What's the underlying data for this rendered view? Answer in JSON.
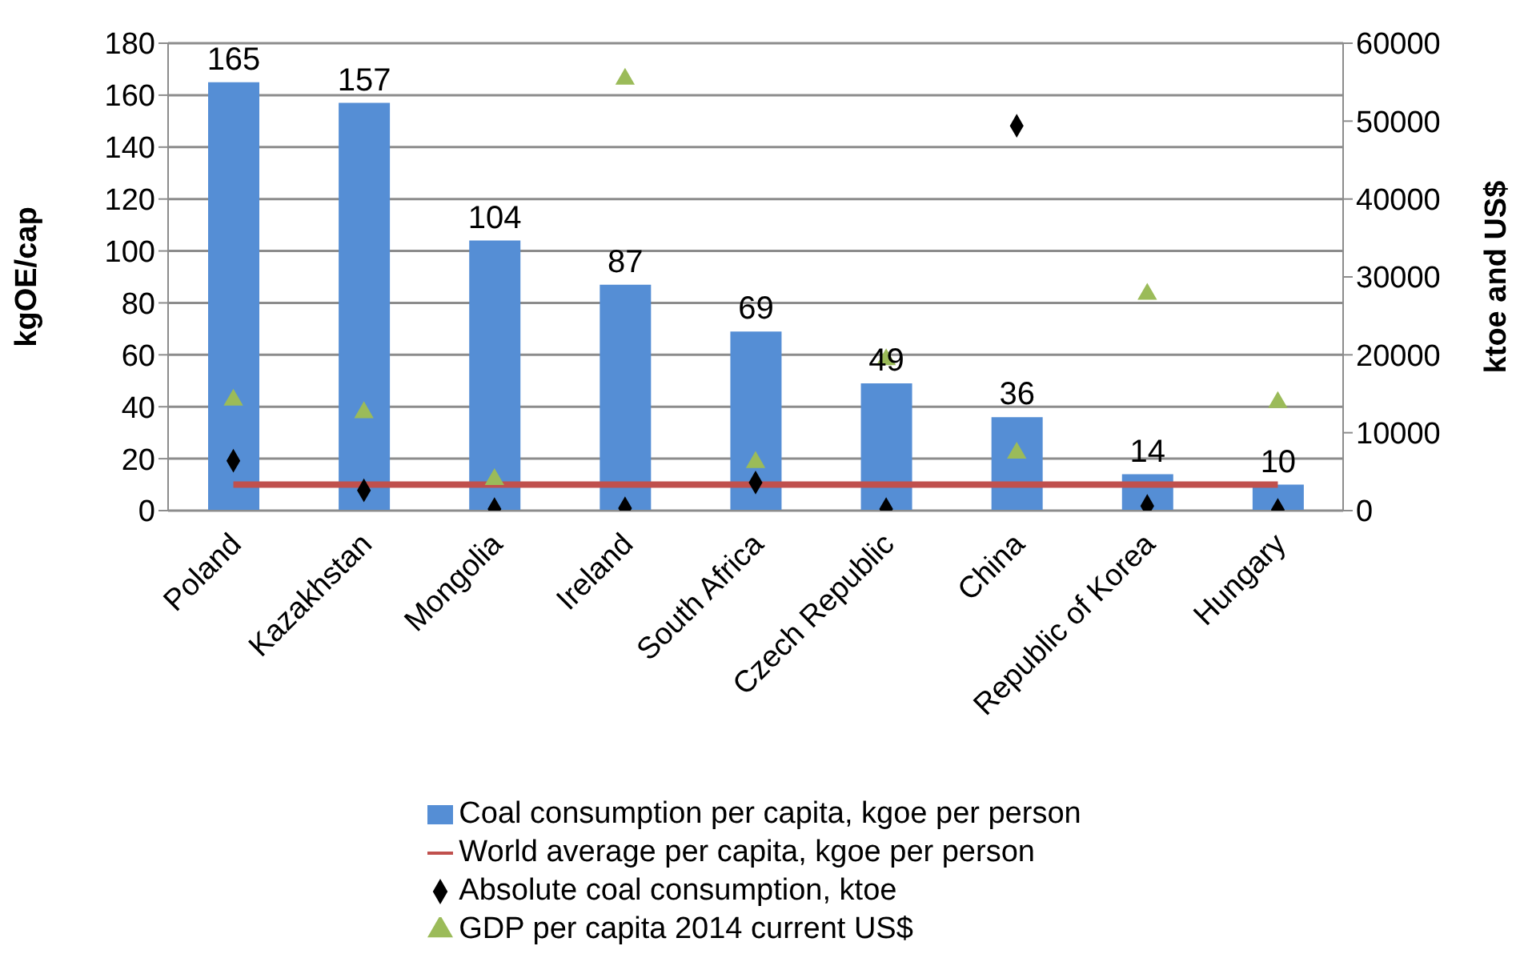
{
  "chart_data": {
    "type": "bar",
    "categories": [
      "Poland",
      "Kazakhstan",
      "Mongolia",
      "Ireland",
      "South Africa",
      "Czech Republic",
      "China",
      "Republic of Korea",
      "Hungary"
    ],
    "ylabel": "kgOE/cap",
    "y2label": "ktoe and US$",
    "ylim": [
      0,
      180
    ],
    "yticks": [
      0,
      20,
      40,
      60,
      80,
      100,
      120,
      140,
      160,
      180
    ],
    "y2lim": [
      0,
      60000
    ],
    "y2ticks": [
      0,
      10000,
      20000,
      30000,
      40000,
      50000,
      60000
    ],
    "grid": "y",
    "legend": "bottom",
    "series": [
      {
        "name": "Coal consumption per capita, kgoe per person",
        "color": "#558ed5",
        "values": [
          165,
          157,
          104,
          87,
          69,
          49,
          36,
          14,
          10
        ],
        "data_labels": true
      },
      {
        "name": "World average per capita, kgoe per person",
        "type": "line",
        "color": "#c0504d",
        "marker": "none",
        "values": [
          10,
          10,
          10,
          10,
          10,
          10,
          10,
          10,
          10
        ]
      },
      {
        "name": "Absolute coal consumption, ktoe",
        "type": "scatter",
        "axis": "y2",
        "color": "#000000",
        "marker": "diamond",
        "values": [
          6400,
          2600,
          200,
          300,
          3600,
          200,
          49400,
          600,
          100
        ]
      },
      {
        "name": "GDP per capita 2014 current US$",
        "type": "scatter",
        "axis": "y2",
        "color": "#9bbb59",
        "marker": "triangle",
        "values": [
          14200,
          12600,
          4000,
          55400,
          6200,
          19400,
          7400,
          27800,
          13900
        ]
      }
    ]
  }
}
